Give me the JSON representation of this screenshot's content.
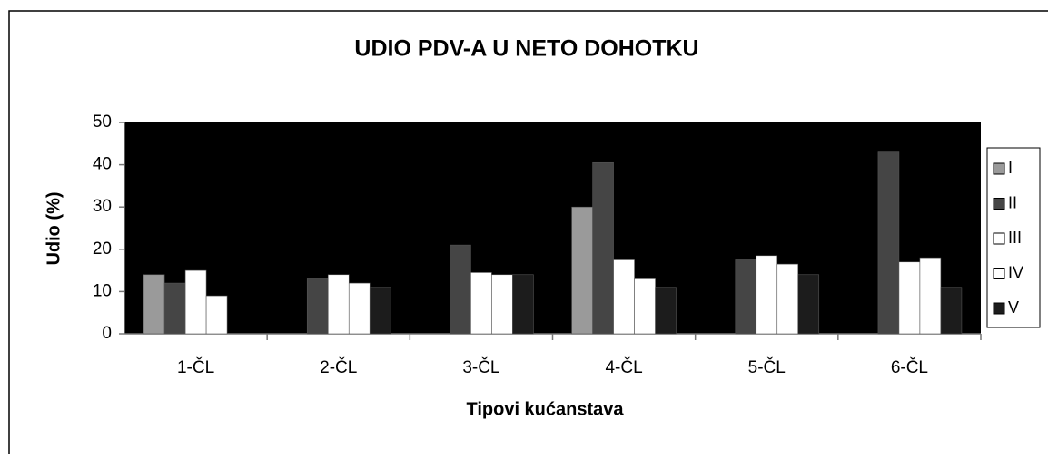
{
  "chart_data": {
    "type": "bar",
    "title": "UDIO PDV-A U NETO DOHOTKU",
    "x_label": "Tipovi kućanstava",
    "y_label": "Udio (%)",
    "categories": [
      "1-ČL",
      "2-ČL",
      "3-ČL",
      "4-ČL",
      "5-ČL",
      "6-ČL"
    ],
    "series": [
      {
        "name": "I",
        "color": "#9a9a9a",
        "values": [
          14,
          null,
          null,
          30,
          null,
          null
        ]
      },
      {
        "name": "II",
        "color": "#454545",
        "values": [
          12,
          13,
          21,
          40.5,
          17.5,
          43
        ]
      },
      {
        "name": "III",
        "color": "#ffffff",
        "values": [
          15,
          14,
          14.5,
          17.5,
          18.5,
          17
        ]
      },
      {
        "name": "IV",
        "color": "#ffffff",
        "values": [
          9,
          12,
          14,
          13,
          16.5,
          18
        ]
      },
      {
        "name": "V",
        "color": "#1c1c1c",
        "values": [
          null,
          11,
          14,
          11,
          14,
          11
        ]
      }
    ],
    "ylim": [
      0,
      50
    ],
    "yticks": [
      0,
      10,
      20,
      30,
      40,
      50
    ],
    "plot_background": "#000000"
  }
}
